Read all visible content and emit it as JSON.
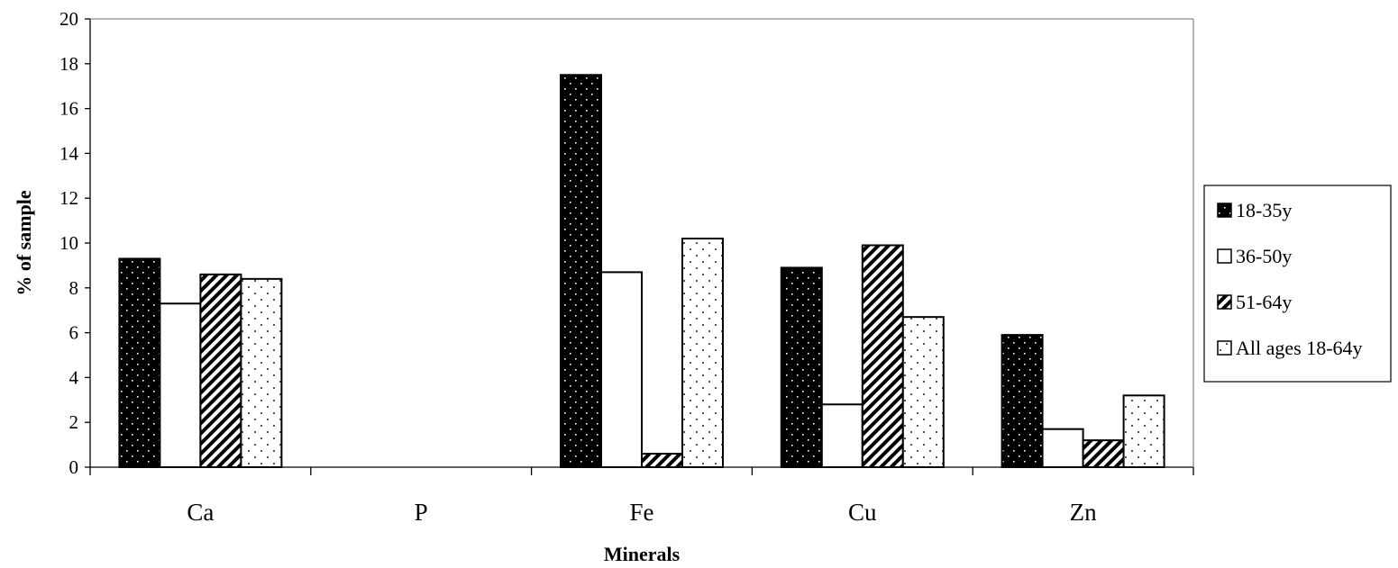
{
  "chart_data": {
    "type": "bar",
    "title": "",
    "xlabel": "Minerals",
    "ylabel": "% of sample",
    "ylim": [
      0,
      20
    ],
    "yticks": [
      0,
      2,
      4,
      6,
      8,
      10,
      12,
      14,
      16,
      18,
      20
    ],
    "categories": [
      "Ca",
      "P",
      "Fe",
      "Cu",
      "Zn"
    ],
    "series": [
      {
        "name": "18-35y",
        "pattern": "dark-dots",
        "values": [
          9.3,
          0,
          17.5,
          8.9,
          5.9
        ]
      },
      {
        "name": "36-50y",
        "pattern": "white",
        "values": [
          7.3,
          0,
          8.7,
          2.8,
          1.7
        ]
      },
      {
        "name": "51-64y",
        "pattern": "diagonal-stripes",
        "values": [
          8.6,
          0,
          0.6,
          9.9,
          1.2
        ]
      },
      {
        "name": "All ages 18-64y",
        "pattern": "light-dots",
        "values": [
          8.4,
          0,
          10.2,
          6.7,
          3.2
        ]
      }
    ],
    "grid": false,
    "legend_position": "right"
  }
}
